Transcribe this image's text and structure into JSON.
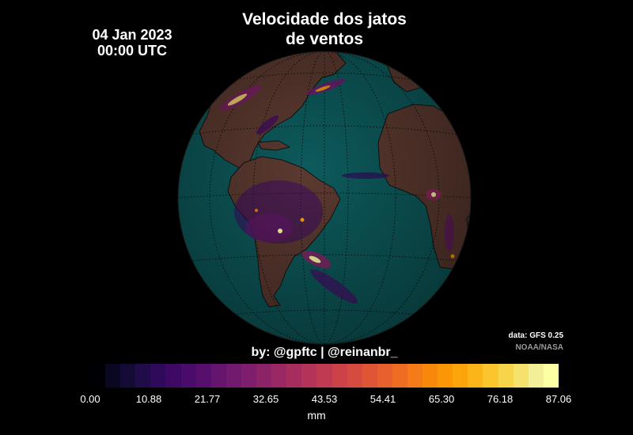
{
  "title": {
    "line1": "Velocidade dos jatos",
    "line2": "de ventos"
  },
  "datetime": {
    "date": "04 Jan 2023",
    "time": "00:00 UTC"
  },
  "credits": {
    "source": "data: GFS 0.25",
    "org": "NOAA/NASA"
  },
  "byline": "by: @gpftc | @reinanbr_",
  "legend": {
    "ticks": [
      "0.00",
      "10.88",
      "21.77",
      "32.65",
      "43.53",
      "54.41",
      "65.30",
      "76.18",
      "87.06"
    ],
    "min": 0,
    "max": 87.06,
    "unit": "mm",
    "colors": [
      "#000004",
      "#0a0722",
      "#150b37",
      "#210c4a",
      "#2f0a5b",
      "#3d0965",
      "#4a0c6b",
      "#570f6d",
      "#65156e",
      "#721a6e",
      "#7f1e6c",
      "#8c2369",
      "#9a2865",
      "#a72d5f",
      "#b43359",
      "#c03a51",
      "#cc4248",
      "#d64b40",
      "#e05536",
      "#e8602d",
      "#ef6c23",
      "#f57a18",
      "#f8880c",
      "#fb9706",
      "#fca50a",
      "#fcb519",
      "#fbc52d",
      "#f8d44a",
      "#f4e26d",
      "#f3ef98",
      "#fcffa4"
    ]
  },
  "map": {
    "ocean_color": "#0d5a5c",
    "land_color": "#5c3a30",
    "projection": "orthographic",
    "graticule": "dotted"
  }
}
